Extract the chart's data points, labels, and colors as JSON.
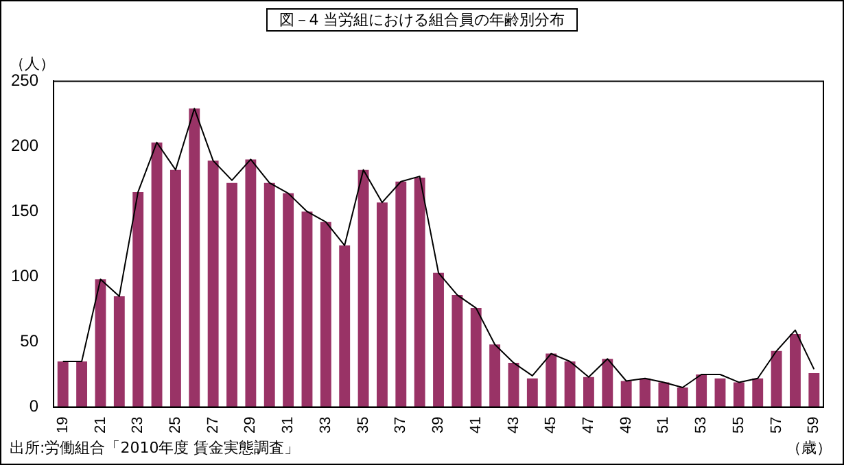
{
  "chart_data": {
    "type": "bar",
    "title": "図－4  当労組における組合員の年齢別分布",
    "ylabel": "（人）",
    "xlabel": "（歳）",
    "categories": [
      "19",
      null,
      "21",
      null,
      "23",
      null,
      "25",
      null,
      "27",
      null,
      "29",
      null,
      "31",
      null,
      "33",
      null,
      "35",
      null,
      "37",
      null,
      "39",
      null,
      "41",
      null,
      "43",
      null,
      "45",
      null,
      "47",
      null,
      "49",
      null,
      "51",
      null,
      "53",
      null,
      "55",
      null,
      "57",
      null,
      "59"
    ],
    "series": [
      {
        "color": "#993366",
        "values": [
          35,
          35,
          98,
          85,
          165,
          203,
          182,
          229,
          189,
          172,
          190,
          172,
          164,
          150,
          142,
          124,
          182,
          157,
          173,
          176,
          103,
          86,
          76,
          48,
          34,
          22,
          41,
          35,
          23,
          37,
          20,
          22,
          19,
          15,
          25,
          22,
          19,
          22,
          43,
          56,
          26
        ]
      },
      {
        "type": "line",
        "color": "#000000",
        "values": [
          35,
          35,
          98,
          85,
          165,
          203,
          182,
          229,
          189,
          174,
          190,
          172,
          164,
          150,
          142,
          124,
          182,
          157,
          173,
          177,
          103,
          86,
          76,
          48,
          34,
          24,
          41,
          35,
          23,
          37,
          20,
          22,
          19,
          15,
          25,
          25,
          19,
          22,
          43,
          59,
          29
        ]
      }
    ],
    "ylim": [
      0,
      250
    ],
    "yticks": [
      0,
      50,
      100,
      150,
      200,
      250
    ],
    "grid": false,
    "legend": false,
    "marker": "none",
    "line_style": "solid",
    "annotations": [
      "出所:労働組合「2010年度  賃金実態調査」"
    ]
  }
}
